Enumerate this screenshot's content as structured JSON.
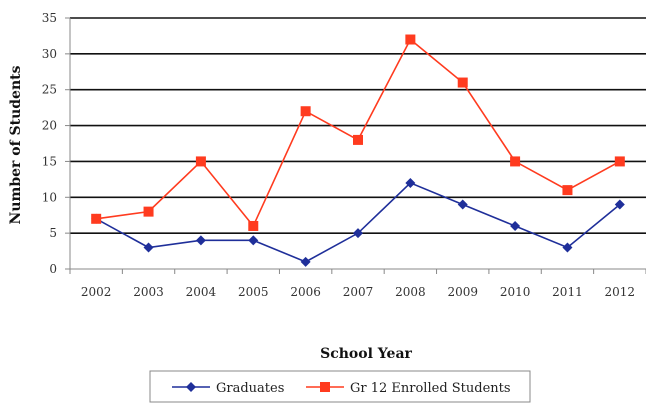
{
  "chart_data": {
    "type": "line",
    "title": "",
    "xlabel": "School Year",
    "ylabel": "Number of Students",
    "categories": [
      "2002",
      "2003",
      "2004",
      "2005",
      "2006",
      "2007",
      "2008",
      "2009",
      "2010",
      "2011",
      "2012"
    ],
    "ylim": [
      0,
      35
    ],
    "yticks": [
      0,
      5,
      10,
      15,
      20,
      25,
      30,
      35
    ],
    "grid": "horizontal",
    "legend_position": "bottom",
    "series": [
      {
        "name": "Graduates",
        "values": [
          7,
          3,
          4,
          4,
          1,
          5,
          12,
          9,
          6,
          3,
          9
        ],
        "color": "#1f2f9a",
        "marker": "diamond"
      },
      {
        "name": "Gr 12 Enrolled Students",
        "values": [
          7,
          8,
          15,
          6,
          22,
          18,
          32,
          26,
          15,
          11,
          15
        ],
        "color": "#ff3b1f",
        "marker": "square"
      }
    ]
  }
}
